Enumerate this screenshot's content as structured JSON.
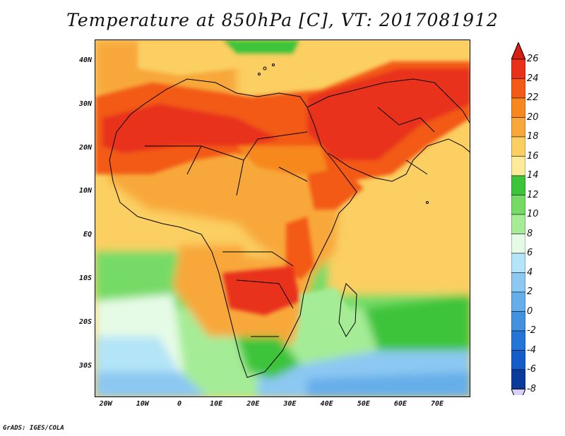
{
  "title": "Temperature at 850hPa [C], VT: 2017081912",
  "credit": "GrADS: IGES/COLA",
  "map": {
    "lon_range": [
      -23,
      79
    ],
    "lat_range": [
      -37,
      45
    ],
    "lat_ticks": [
      {
        "label": "40N",
        "value": 40
      },
      {
        "label": "30N",
        "value": 30
      },
      {
        "label": "20N",
        "value": 20
      },
      {
        "label": "10N",
        "value": 10
      },
      {
        "label": "EQ",
        "value": 0
      },
      {
        "label": "10S",
        "value": -10
      },
      {
        "label": "20S",
        "value": -20
      },
      {
        "label": "30S",
        "value": -30
      }
    ],
    "lon_ticks": [
      {
        "label": "20W",
        "value": -20
      },
      {
        "label": "10W",
        "value": -10
      },
      {
        "label": "0",
        "value": 0
      },
      {
        "label": "10E",
        "value": 10
      },
      {
        "label": "20E",
        "value": 20
      },
      {
        "label": "30E",
        "value": 30
      },
      {
        "label": "40E",
        "value": 40
      },
      {
        "label": "50E",
        "value": 50
      },
      {
        "label": "60E",
        "value": 60
      },
      {
        "label": "70E",
        "value": 70
      }
    ]
  },
  "colorbar": {
    "labels": [
      "26",
      "24",
      "22",
      "20",
      "18",
      "16",
      "14",
      "12",
      "10",
      "8",
      "6",
      "4",
      "2",
      "0",
      "-2",
      "-4",
      "-6",
      "-8"
    ],
    "colors": [
      "#e8301a",
      "#f25a15",
      "#f7881f",
      "#f8a83a",
      "#fbcf62",
      "#fdeb9b",
      "#3ec43a",
      "#76db66",
      "#a5ec96",
      "#e6fbe6",
      "#b3e4f7",
      "#8cc8f2",
      "#66aeea",
      "#4391df",
      "#2475d6",
      "#145cc7",
      "#0a3b9a"
    ],
    "top_color": "#d81e0e",
    "bottom_color": "#d6d0fa"
  }
}
